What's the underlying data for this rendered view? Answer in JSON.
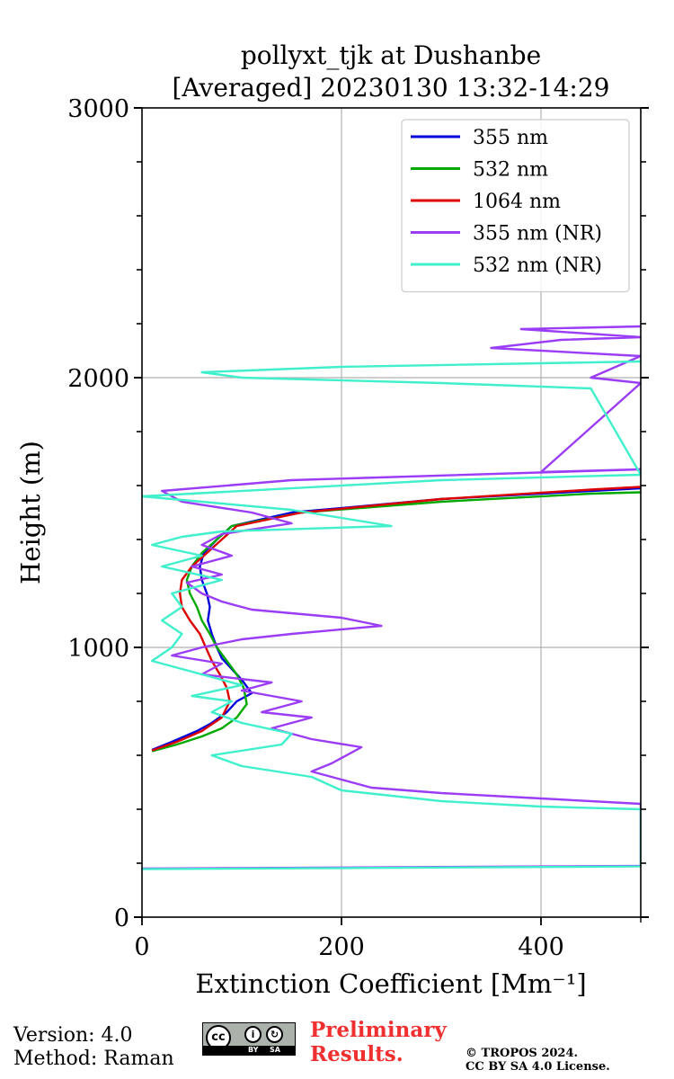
{
  "chart_data": {
    "type": "line",
    "title": [
      "pollyxt_tjk at Dushanbe",
      "[Averaged] 20230130 13:32-14:29"
    ],
    "xlabel": "Extinction Coefficient [Mm⁻¹]",
    "ylabel": "Height (m)",
    "xlim": [
      0,
      500
    ],
    "ylim": [
      0,
      3000
    ],
    "xticks": [
      0,
      200,
      400
    ],
    "yticks": [
      0,
      1000,
      2000,
      3000
    ],
    "grid": true,
    "legend_position": "top-right",
    "series": [
      {
        "name": "355 nm",
        "color": "#0000dd",
        "points": [
          [
            10,
            620
          ],
          [
            30,
            650
          ],
          [
            55,
            690
          ],
          [
            70,
            720
          ],
          [
            85,
            760
          ],
          [
            95,
            800
          ],
          [
            110,
            830
          ],
          [
            100,
            880
          ],
          [
            90,
            920
          ],
          [
            80,
            960
          ],
          [
            75,
            1000
          ],
          [
            70,
            1050
          ],
          [
            66,
            1100
          ],
          [
            68,
            1150
          ],
          [
            65,
            1200
          ],
          [
            60,
            1250
          ],
          [
            58,
            1300
          ],
          [
            62,
            1350
          ],
          [
            75,
            1400
          ],
          [
            90,
            1450
          ],
          [
            150,
            1500
          ],
          [
            300,
            1550
          ],
          [
            450,
            1580
          ],
          [
            500,
            1590
          ]
        ]
      },
      {
        "name": "532 nm",
        "color": "#00aa00",
        "points": [
          [
            10,
            615
          ],
          [
            35,
            640
          ],
          [
            60,
            670
          ],
          [
            80,
            700
          ],
          [
            95,
            740
          ],
          [
            105,
            790
          ],
          [
            102,
            850
          ],
          [
            95,
            900
          ],
          [
            85,
            950
          ],
          [
            75,
            1000
          ],
          [
            68,
            1050
          ],
          [
            60,
            1100
          ],
          [
            55,
            1150
          ],
          [
            48,
            1200
          ],
          [
            45,
            1250
          ],
          [
            50,
            1300
          ],
          [
            60,
            1350
          ],
          [
            75,
            1400
          ],
          [
            90,
            1450
          ],
          [
            160,
            1500
          ],
          [
            300,
            1540
          ],
          [
            450,
            1570
          ],
          [
            500,
            1575
          ]
        ]
      },
      {
        "name": "1064 nm",
        "color": "#dd0000",
        "points": [
          [
            10,
            618
          ],
          [
            35,
            650
          ],
          [
            60,
            690
          ],
          [
            80,
            740
          ],
          [
            88,
            800
          ],
          [
            85,
            850
          ],
          [
            78,
            900
          ],
          [
            70,
            950
          ],
          [
            64,
            1000
          ],
          [
            58,
            1050
          ],
          [
            48,
            1100
          ],
          [
            40,
            1150
          ],
          [
            38,
            1200
          ],
          [
            40,
            1250
          ],
          [
            50,
            1300
          ],
          [
            65,
            1350
          ],
          [
            80,
            1400
          ],
          [
            95,
            1450
          ],
          [
            160,
            1500
          ],
          [
            300,
            1550
          ],
          [
            450,
            1585
          ],
          [
            500,
            1595
          ]
        ]
      },
      {
        "name": "355 nm (NR)",
        "color": "#9b3cf6",
        "points": [
          [
            0,
            180
          ],
          [
            500,
            190
          ],
          [
            500,
            420
          ],
          [
            400,
            440
          ],
          [
            300,
            460
          ],
          [
            230,
            480
          ],
          [
            200,
            510
          ],
          [
            170,
            540
          ],
          [
            190,
            570
          ],
          [
            220,
            630
          ],
          [
            170,
            660
          ],
          [
            130,
            700
          ],
          [
            170,
            740
          ],
          [
            120,
            760
          ],
          [
            160,
            800
          ],
          [
            100,
            840
          ],
          [
            130,
            870
          ],
          [
            60,
            900
          ],
          [
            80,
            940
          ],
          [
            30,
            970
          ],
          [
            60,
            1000
          ],
          [
            100,
            1030
          ],
          [
            150,
            1050
          ],
          [
            240,
            1080
          ],
          [
            200,
            1110
          ],
          [
            110,
            1140
          ],
          [
            80,
            1170
          ],
          [
            60,
            1200
          ],
          [
            45,
            1240
          ],
          [
            80,
            1270
          ],
          [
            50,
            1300
          ],
          [
            90,
            1340
          ],
          [
            60,
            1380
          ],
          [
            80,
            1420
          ],
          [
            150,
            1460
          ],
          [
            110,
            1500
          ],
          [
            40,
            1540
          ],
          [
            20,
            1580
          ],
          [
            150,
            1620
          ],
          [
            500,
            1660
          ],
          [
            400,
            1650
          ],
          [
            500,
            1980
          ],
          [
            450,
            2000
          ],
          [
            500,
            2080
          ],
          [
            350,
            2110
          ],
          [
            420,
            2140
          ],
          [
            500,
            2150
          ],
          [
            380,
            2180
          ],
          [
            500,
            2190
          ]
        ]
      },
      {
        "name": "532 nm (NR)",
        "color": "#40f0cc",
        "points": [
          [
            0,
            178
          ],
          [
            500,
            188
          ],
          [
            500,
            400
          ],
          [
            400,
            410
          ],
          [
            300,
            430
          ],
          [
            200,
            470
          ],
          [
            170,
            520
          ],
          [
            100,
            560
          ],
          [
            70,
            600
          ],
          [
            140,
            640
          ],
          [
            150,
            680
          ],
          [
            100,
            720
          ],
          [
            70,
            760
          ],
          [
            90,
            800
          ],
          [
            50,
            820
          ],
          [
            100,
            860
          ],
          [
            60,
            900
          ],
          [
            10,
            950
          ],
          [
            30,
            1000
          ],
          [
            40,
            1050
          ],
          [
            20,
            1100
          ],
          [
            40,
            1150
          ],
          [
            30,
            1200
          ],
          [
            80,
            1250
          ],
          [
            20,
            1300
          ],
          [
            60,
            1340
          ],
          [
            10,
            1380
          ],
          [
            40,
            1410
          ],
          [
            80,
            1430
          ],
          [
            250,
            1450
          ],
          [
            200,
            1480
          ],
          [
            150,
            1510
          ],
          [
            60,
            1540
          ],
          [
            0,
            1560
          ],
          [
            300,
            1620
          ],
          [
            500,
            1640
          ],
          [
            450,
            1960
          ],
          [
            300,
            1980
          ],
          [
            100,
            2000
          ],
          [
            60,
            2020
          ],
          [
            200,
            2040
          ],
          [
            500,
            2060
          ]
        ]
      }
    ]
  },
  "footer": {
    "version": "Version: 4.0",
    "method": "Method: Raman",
    "preliminary": [
      "Preliminary",
      "Results."
    ],
    "copyright": [
      "© TROPOS 2024.",
      "CC BY SA 4.0 License."
    ],
    "cc_badge": {
      "by": "BY",
      "sa": "SA",
      "cc": "cc"
    }
  }
}
